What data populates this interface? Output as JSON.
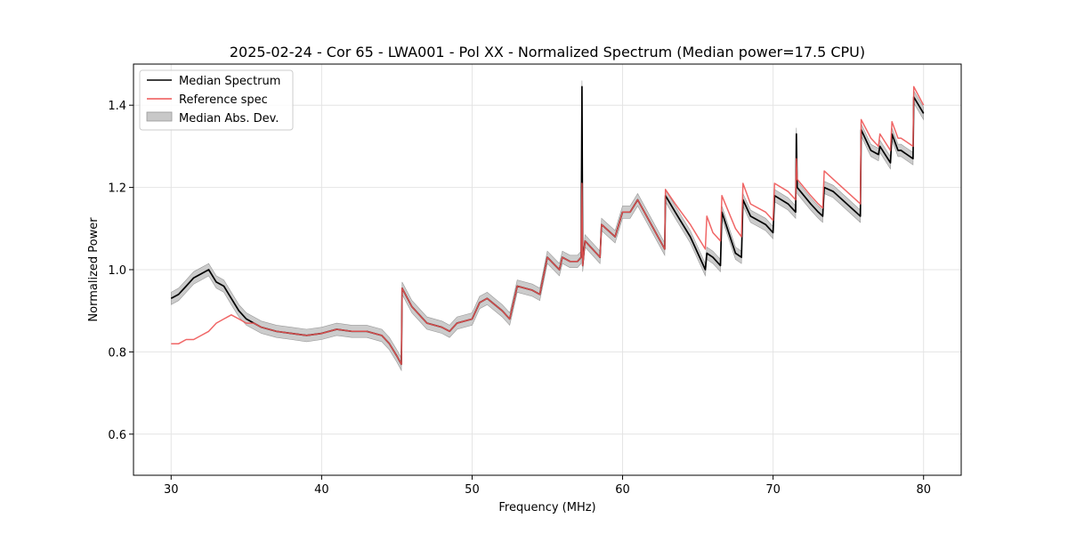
{
  "chart_data": {
    "type": "line",
    "title": "2025-02-24 - Cor 65 - LWA001 - Pol XX - Normalized Spectrum (Median power=17.5 CPU)",
    "xlabel": "Frequency (MHz)",
    "ylabel": "Normalized Power",
    "xlim": [
      27.5,
      82.5
    ],
    "ylim": [
      0.5,
      1.5
    ],
    "xticks": [
      30,
      40,
      50,
      60,
      70,
      80
    ],
    "yticks": [
      0.6,
      0.8,
      1.0,
      1.2,
      1.4
    ],
    "grid": true,
    "legend_position": "upper-left",
    "legend": [
      "Median Spectrum",
      "Reference spec",
      "Median Abs. Dev."
    ],
    "colors": {
      "median": "#000000",
      "reference": "#ee5555",
      "band": "#bbbbbb",
      "overlap": "#8b0000"
    },
    "series": [
      {
        "name": "Median Spectrum",
        "x": [
          30.0,
          30.5,
          31.0,
          31.5,
          32.0,
          32.5,
          33.0,
          33.5,
          34.0,
          34.5,
          35.0,
          35.5,
          36.0,
          37.0,
          38.0,
          39.0,
          40.0,
          41.0,
          42.0,
          43.0,
          44.0,
          44.5,
          45.0,
          45.3,
          45.35,
          46.0,
          47.0,
          48.0,
          48.5,
          49.0,
          50.0,
          50.5,
          51.0,
          52.0,
          52.5,
          53.0,
          54.0,
          54.5,
          55.0,
          55.8,
          56.0,
          56.5,
          57.0,
          57.25,
          57.3,
          57.35,
          57.5,
          58.5,
          58.6,
          59.5,
          60.0,
          60.5,
          61.0,
          62.8,
          62.85,
          63.5,
          64.5,
          65.5,
          65.6,
          66.0,
          66.5,
          66.6,
          67.5,
          67.9,
          68.0,
          68.5,
          69.5,
          70.0,
          70.1,
          71.0,
          71.5,
          71.55,
          71.6,
          72.5,
          73.0,
          73.3,
          73.4,
          74.0,
          75.8,
          75.85,
          76.5,
          77.0,
          77.1,
          77.8,
          77.9,
          78.3,
          78.5,
          79.3,
          79.35,
          80.0
        ],
        "y": [
          0.93,
          0.94,
          0.96,
          0.98,
          0.99,
          1.0,
          0.97,
          0.96,
          0.93,
          0.9,
          0.88,
          0.87,
          0.86,
          0.85,
          0.845,
          0.84,
          0.845,
          0.855,
          0.85,
          0.85,
          0.84,
          0.82,
          0.79,
          0.77,
          0.955,
          0.91,
          0.87,
          0.86,
          0.85,
          0.87,
          0.88,
          0.92,
          0.93,
          0.9,
          0.88,
          0.96,
          0.95,
          0.94,
          1.03,
          1.0,
          1.03,
          1.02,
          1.02,
          1.03,
          1.445,
          1.01,
          1.07,
          1.03,
          1.11,
          1.08,
          1.14,
          1.14,
          1.17,
          1.05,
          1.18,
          1.14,
          1.08,
          1.0,
          1.04,
          1.03,
          1.01,
          1.14,
          1.04,
          1.03,
          1.17,
          1.13,
          1.11,
          1.09,
          1.18,
          1.16,
          1.14,
          1.33,
          1.2,
          1.16,
          1.14,
          1.13,
          1.2,
          1.19,
          1.13,
          1.34,
          1.29,
          1.28,
          1.3,
          1.26,
          1.33,
          1.29,
          1.29,
          1.27,
          1.42,
          1.38
        ]
      },
      {
        "name": "Reference spec",
        "x": [
          30.0,
          30.5,
          31.0,
          31.5,
          32.0,
          32.5,
          33.0,
          33.5,
          34.0,
          34.5,
          35.0,
          35.5,
          36.0,
          37.0,
          38.0,
          39.0,
          40.0,
          41.0,
          42.0,
          43.0,
          44.0,
          44.5,
          45.0,
          45.3,
          45.35,
          46.0,
          47.0,
          48.0,
          48.5,
          49.0,
          50.0,
          50.5,
          51.0,
          52.0,
          52.5,
          53.0,
          54.0,
          54.5,
          55.0,
          55.8,
          56.0,
          56.5,
          57.0,
          57.25,
          57.3,
          57.35,
          57.5,
          58.5,
          58.6,
          59.5,
          60.0,
          60.5,
          61.0,
          62.8,
          62.85,
          63.5,
          64.5,
          65.5,
          65.6,
          66.0,
          66.5,
          66.6,
          67.5,
          67.9,
          68.0,
          68.5,
          69.5,
          70.0,
          70.1,
          71.0,
          71.5,
          71.55,
          71.6,
          72.5,
          73.0,
          73.3,
          73.4,
          74.0,
          75.8,
          75.85,
          76.5,
          77.0,
          77.1,
          77.8,
          77.9,
          78.3,
          78.5,
          79.3,
          79.35,
          80.0
        ],
        "y": [
          0.82,
          0.82,
          0.83,
          0.83,
          0.84,
          0.85,
          0.87,
          0.88,
          0.89,
          0.88,
          0.87,
          0.87,
          0.86,
          0.85,
          0.845,
          0.84,
          0.845,
          0.855,
          0.85,
          0.85,
          0.84,
          0.82,
          0.79,
          0.77,
          0.955,
          0.91,
          0.87,
          0.86,
          0.85,
          0.87,
          0.88,
          0.92,
          0.93,
          0.9,
          0.88,
          0.96,
          0.95,
          0.94,
          1.03,
          1.0,
          1.03,
          1.02,
          1.02,
          1.03,
          1.21,
          1.01,
          1.07,
          1.03,
          1.11,
          1.08,
          1.14,
          1.14,
          1.17,
          1.05,
          1.195,
          1.16,
          1.11,
          1.05,
          1.13,
          1.09,
          1.07,
          1.18,
          1.1,
          1.08,
          1.21,
          1.16,
          1.14,
          1.12,
          1.21,
          1.19,
          1.17,
          1.27,
          1.22,
          1.18,
          1.16,
          1.15,
          1.24,
          1.22,
          1.16,
          1.365,
          1.32,
          1.3,
          1.33,
          1.29,
          1.36,
          1.32,
          1.32,
          1.3,
          1.445,
          1.4
        ]
      },
      {
        "name": "Median Abs. Dev.",
        "note": "band = median +/- mad",
        "mad": 0.015
      }
    ]
  }
}
